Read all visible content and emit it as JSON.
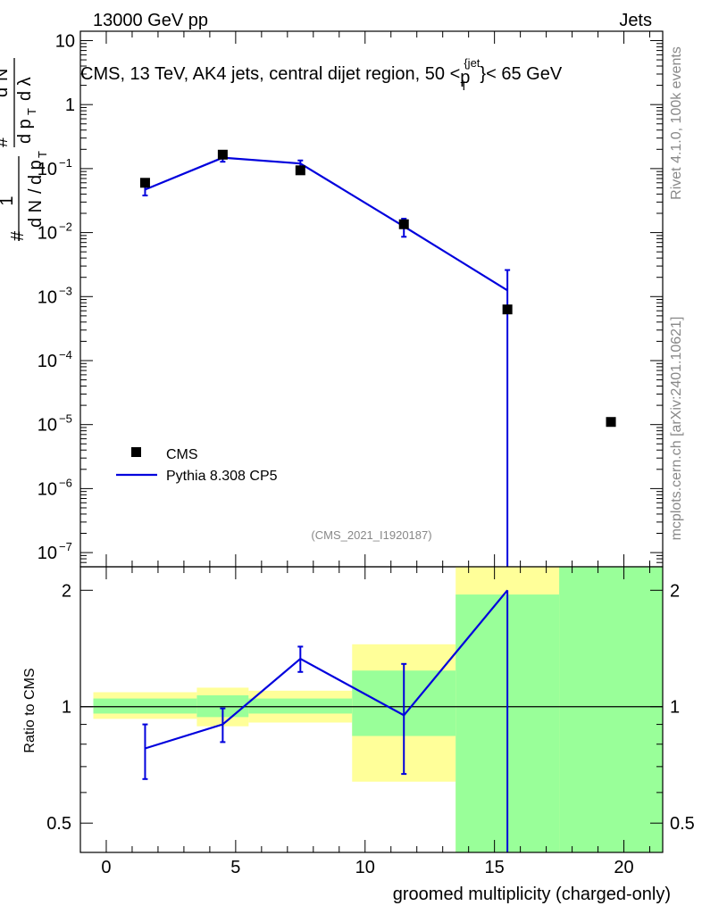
{
  "header": {
    "left": "13000 GeV pp",
    "right": "Jets"
  },
  "side_labels": {
    "top": "Rivet 4.1.0,  100k events",
    "bottom": "mcplots.cern.ch [arXiv:2401.10621]"
  },
  "watermark": "(CMS_2021_I1920187)",
  "colors": {
    "mc": "#0000dd",
    "band_inner": "#99ff99",
    "band_outer": "#ffff99",
    "data": "#000000"
  },
  "chart_data": [
    {
      "type": "scatter",
      "title": "CMS, 13 TeV, AK4 jets, central dijet region, 50 <p_T^{jet}< 65 GeV",
      "title_parts": {
        "main": "CMS, 13 TeV, AK4 jets, central dijet region, 50 <",
        "p": "p",
        "sub": "T",
        "sup": "{jet",
        "close": "}< 65 GeV"
      },
      "ylabel": "1/dN/dp_T d²N/dp_T dλ",
      "ylabel_parts": {
        "one": "1",
        "hash": "#",
        "dN": "d N",
        "slash": "/",
        "dp": "d p",
        "T": "T",
        "d2N": "d",
        "two": "2",
        "N": "N",
        "dpdl": "d p",
        "T2": "T",
        "dlam": "d λ"
      },
      "yscale": "log",
      "ylim": [
        6e-08,
        14
      ],
      "xlim": [
        -1,
        21.5
      ],
      "yticks": [
        {
          "v": 10,
          "base": "10",
          "exp": ""
        },
        {
          "v": 1,
          "base": "1",
          "exp": ""
        },
        {
          "v": 0.1,
          "base": "10",
          "exp": "−1"
        },
        {
          "v": 0.01,
          "base": "10",
          "exp": "−2"
        },
        {
          "v": 0.001,
          "base": "10",
          "exp": "−3"
        },
        {
          "v": 0.0001,
          "base": "10",
          "exp": "−4"
        },
        {
          "v": 1e-05,
          "base": "10",
          "exp": "−5"
        },
        {
          "v": 1e-06,
          "base": "10",
          "exp": "−6"
        },
        {
          "v": 1e-07,
          "base": "10",
          "exp": "−7"
        }
      ],
      "legend": {
        "position": "bottom-left",
        "entries": [
          "CMS",
          "Pythia 8.308 CP5"
        ]
      },
      "series": [
        {
          "name": "CMS",
          "points": [
            {
              "x": 1.5,
              "y": 0.06
            },
            {
              "x": 4.5,
              "y": 0.165
            },
            {
              "x": 7.5,
              "y": 0.094
            },
            {
              "x": 11.5,
              "y": 0.0135
            },
            {
              "x": 15.5,
              "y": 0.00063
            },
            {
              "x": 19.5,
              "y": 1.1e-05
            }
          ]
        },
        {
          "name": "Pythia 8.308 CP5",
          "points": [
            {
              "x": 1.5,
              "y": 0.047,
              "lo": 0.038,
              "hi": 0.056
            },
            {
              "x": 4.5,
              "y": 0.148,
              "lo": 0.128,
              "hi": 0.168
            },
            {
              "x": 7.5,
              "y": 0.12,
              "lo": 0.106,
              "hi": 0.134
            },
            {
              "x": 11.5,
              "y": 0.0125,
              "lo": 0.0086,
              "hi": 0.0165
            },
            {
              "x": 15.5,
              "y": 0.00125,
              "lo": 6e-08,
              "hi": 0.0026
            }
          ]
        }
      ]
    },
    {
      "type": "line",
      "xlabel": "groomed multiplicity (charged-only)",
      "ylabel": "Ratio to CMS",
      "yscale": "log",
      "ylim": [
        0.42,
        2.3
      ],
      "xlim": [
        -1,
        21.5
      ],
      "xticks": [
        0,
        5,
        10,
        15,
        20
      ],
      "yticks": [
        0.5,
        1,
        2
      ],
      "reference_line": 1,
      "bands": [
        {
          "x0": -0.5,
          "x1": 3.5,
          "inner": [
            0.96,
            1.05
          ],
          "outer": [
            0.93,
            1.09
          ]
        },
        {
          "x0": 3.5,
          "x1": 5.5,
          "inner": [
            0.94,
            1.07
          ],
          "outer": [
            0.89,
            1.12
          ]
        },
        {
          "x0": 5.5,
          "x1": 9.5,
          "inner": [
            0.96,
            1.05
          ],
          "outer": [
            0.91,
            1.1
          ]
        },
        {
          "x0": 9.5,
          "x1": 13.5,
          "inner": [
            0.84,
            1.24
          ],
          "outer": [
            0.64,
            1.45
          ]
        },
        {
          "x0": 13.5,
          "x1": 17.5,
          "inner": [
            0.42,
            1.95
          ],
          "outer": [
            0.42,
            2.3
          ]
        },
        {
          "x0": 17.5,
          "x1": 21.5,
          "inner": [
            0.42,
            2.3
          ],
          "outer": [
            0.42,
            2.3
          ]
        }
      ],
      "series": [
        {
          "name": "Pythia 8.308 CP5",
          "points": [
            {
              "x": 1.5,
              "y": 0.78,
              "lo": 0.65,
              "hi": 0.9
            },
            {
              "x": 4.5,
              "y": 0.9,
              "lo": 0.81,
              "hi": 0.99
            },
            {
              "x": 7.5,
              "y": 1.33,
              "lo": 1.23,
              "hi": 1.43
            },
            {
              "x": 11.5,
              "y": 0.95,
              "lo": 0.67,
              "hi": 1.29
            },
            {
              "x": 15.5,
              "y": 2.0,
              "lo": 0.42,
              "hi": 2.0
            }
          ]
        }
      ]
    }
  ]
}
